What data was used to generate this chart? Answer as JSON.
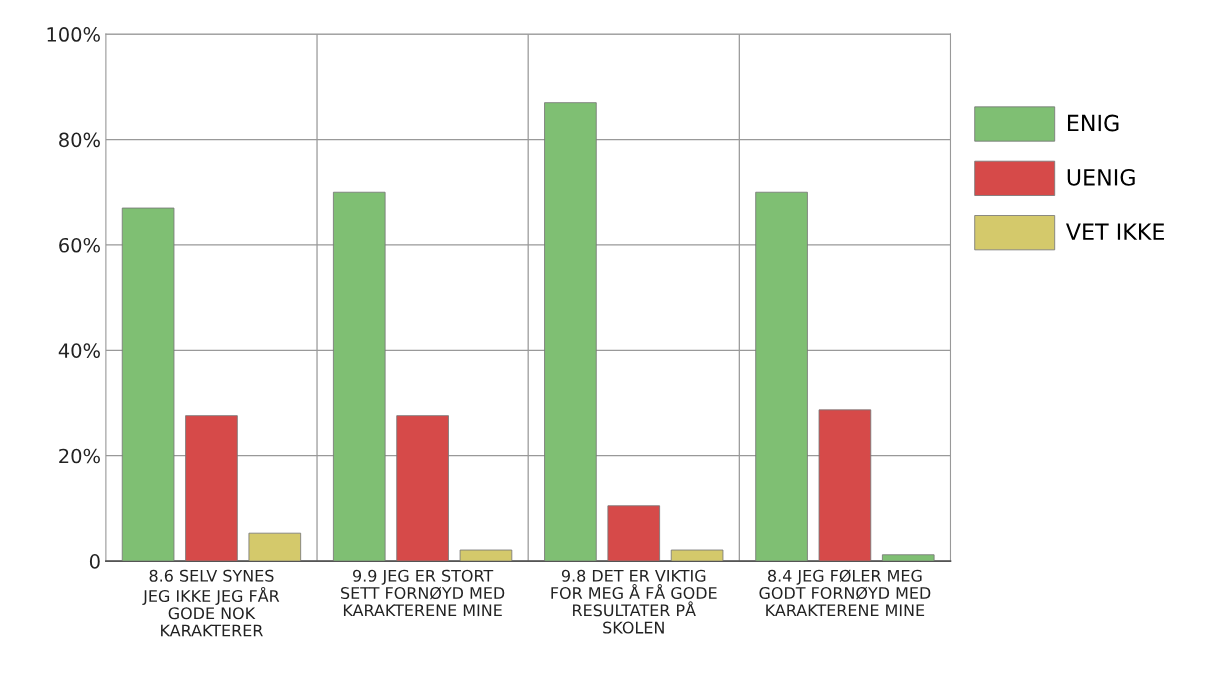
{
  "chart_data": {
    "type": "bar",
    "categories": [
      "8.6 SELV SYNES JEG IKKE JEG FÅR GODE NOK KARAKTERER",
      "9.9 JEG ER STORT SETT FORNØYD MED KARAKTERENE MINE",
      "9.8 DET ER VIKTIG FOR MEG Å FÅ GODE RESULTATER PÅ SKOLEN",
      "8.4 JEG FØLER MEG GODT FORNØYD MED KARAKTERENE MINE"
    ],
    "series": [
      {
        "name": "ENIG",
        "color": "#7fbf73",
        "values": [
          67,
          70,
          87,
          70
        ]
      },
      {
        "name": "UENIG",
        "color": "#d64a49",
        "values": [
          27.6,
          27.6,
          10.5,
          28.7
        ]
      },
      {
        "name": "VET IKKE",
        "color": "#d4c96b",
        "colors": [
          "#d4c96b",
          "#d4c96b",
          "#d4c96b",
          "#7fbf73"
        ],
        "values": [
          5.3,
          2.1,
          2.1,
          1.2
        ]
      }
    ],
    "ylim": [
      0,
      100
    ],
    "yticks": [
      {
        "value": 0,
        "label": "0"
      },
      {
        "value": 20,
        "label": "20%"
      },
      {
        "value": 40,
        "label": "40%"
      },
      {
        "value": 60,
        "label": "60%"
      },
      {
        "value": 80,
        "label": "80%"
      },
      {
        "value": 100,
        "label": "100%"
      }
    ],
    "grid": true,
    "legend": "top right"
  }
}
